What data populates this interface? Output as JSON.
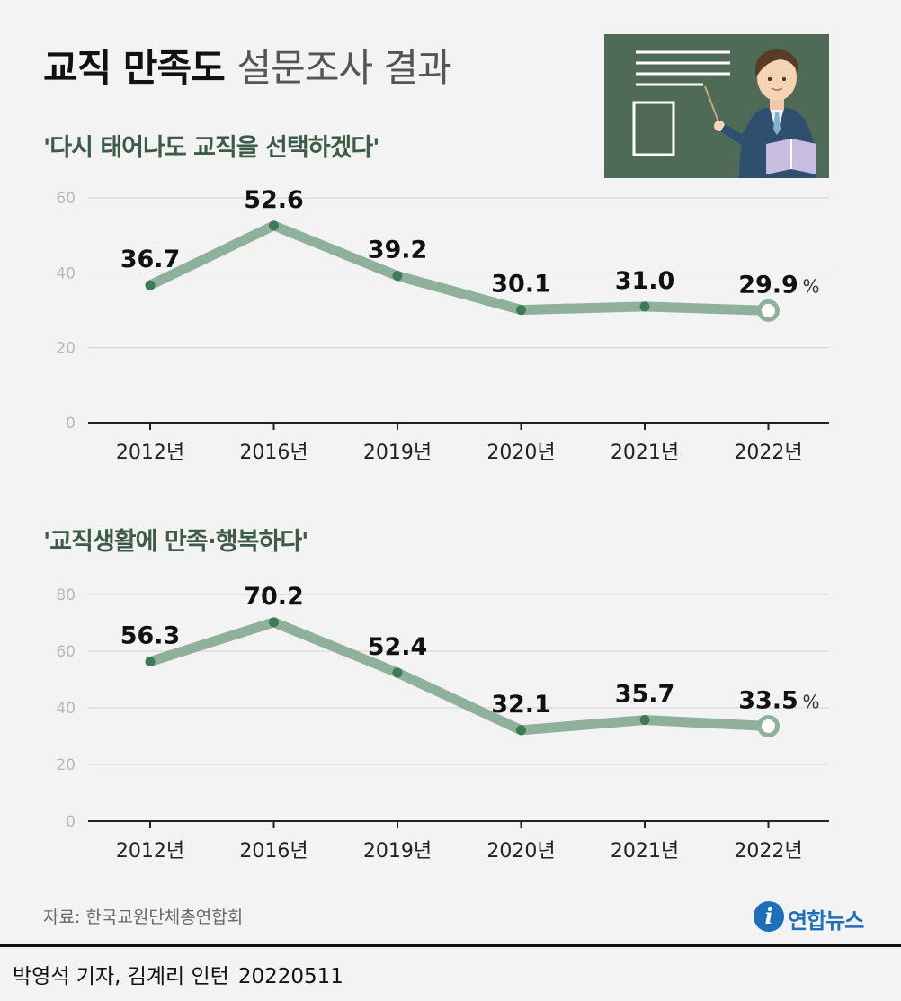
{
  "title": {
    "main": "교직 만족도",
    "sub": "설문조사 결과"
  },
  "chart_data": [
    {
      "type": "line",
      "title": "'다시 태어나도 교직을 선택하겠다'",
      "categories": [
        "2012년",
        "2016년",
        "2019년",
        "2020년",
        "2021년",
        "2022년"
      ],
      "values": [
        36.7,
        52.6,
        39.2,
        30.1,
        31.0,
        29.9
      ],
      "value_labels": [
        "36.7",
        "52.6",
        "39.2",
        "30.1",
        "31.0",
        "29.9"
      ],
      "unit": "%",
      "ylim": [
        0,
        60
      ],
      "yticks": [
        0,
        20,
        40,
        60
      ],
      "grid": true,
      "line_color": "#8fb09a",
      "marker_color": "#3d7a55"
    },
    {
      "type": "line",
      "title": "'교직생활에 만족·행복하다'",
      "categories": [
        "2012년",
        "2016년",
        "2019년",
        "2020년",
        "2021년",
        "2022년"
      ],
      "values": [
        56.3,
        70.2,
        52.4,
        32.1,
        35.7,
        33.5
      ],
      "value_labels": [
        "56.3",
        "70.2",
        "52.4",
        "32.1",
        "35.7",
        "33.5"
      ],
      "unit": "%",
      "ylim": [
        0,
        80
      ],
      "yticks": [
        0,
        20,
        40,
        60,
        80
      ],
      "grid": true,
      "line_color": "#8fb09a",
      "marker_color": "#3d7a55"
    }
  ],
  "source": "자료: 한국교원단체총연합회",
  "logo": {
    "mark": "i",
    "text": "연합뉴스"
  },
  "footer": {
    "credit": "박영석 기자, 김계리 인턴",
    "date": "20220511"
  },
  "illustration": {
    "icon": "teacher-at-chalkboard-icon",
    "board_color": "#4f6b58"
  }
}
